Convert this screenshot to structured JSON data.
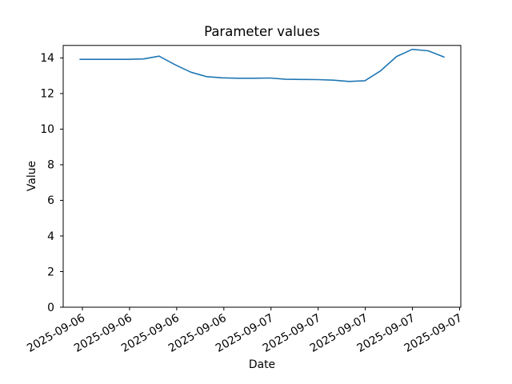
{
  "figure": {
    "title": "Parameter values",
    "xlabel": "Date",
    "ylabel": "Value"
  },
  "chart_data": {
    "type": "line",
    "title": "Parameter values",
    "xlabel": "Date",
    "ylabel": "Value",
    "x_tick_labels": [
      "2025-09-06",
      "2025-09-06",
      "2025-09-06",
      "2025-09-06",
      "2025-09-07",
      "2025-09-07",
      "2025-09-07",
      "2025-09-07",
      "2025-09-07"
    ],
    "x_tick_rotation_deg": 30,
    "y_ticks": [
      0,
      2,
      4,
      6,
      8,
      10,
      12,
      14
    ],
    "y_tick_labels": [
      "0",
      "2",
      "4",
      "6",
      "8",
      "10",
      "12",
      "14"
    ],
    "ylim": [
      0,
      14.7
    ],
    "grid": false,
    "legend_position": "none",
    "line_color": "#1f77b4",
    "axis_color": "#000000",
    "background_color": "#ffffff",
    "series": [
      {
        "name": "Parameter values",
        "values": [
          13.92,
          13.92,
          13.92,
          13.92,
          13.94,
          14.1,
          13.62,
          13.2,
          12.95,
          12.88,
          12.86,
          12.86,
          12.87,
          12.8,
          12.79,
          12.78,
          12.75,
          12.68,
          12.72,
          13.28,
          14.08,
          14.48,
          14.4,
          14.05
        ]
      }
    ]
  }
}
